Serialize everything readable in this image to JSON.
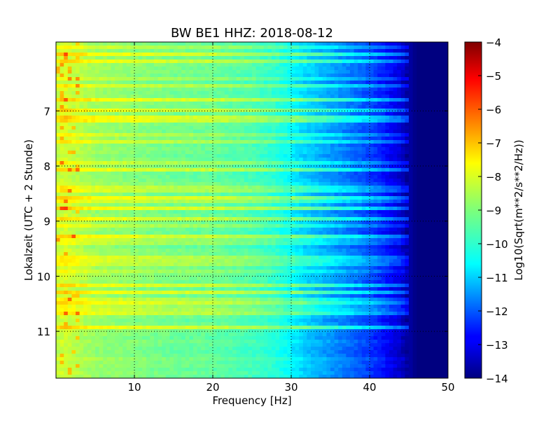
{
  "chart_data": {
    "type": "heatmap",
    "title": "BW BE1 HHZ: 2018-08-12",
    "xlabel": "Frequency [Hz]",
    "ylabel": "Lokalzeit (UTC + 2 Stunde)",
    "xlim": [
      0,
      50
    ],
    "ylim": [
      5.75,
      11.85
    ],
    "y_inverted": true,
    "x_ticks": [
      10,
      20,
      30,
      40,
      50
    ],
    "x_tick_labels": [
      "10",
      "20",
      "30",
      "40",
      "50"
    ],
    "y_ticks": [
      7,
      8,
      9,
      10,
      11
    ],
    "y_tick_labels": [
      "7",
      "8",
      "9",
      "10",
      "11"
    ],
    "grid": true,
    "colormap": "jet",
    "colorbar": {
      "label": "Log10(Sqrt(m**2/s**2/Hz))",
      "vmin": -14,
      "vmax": -4,
      "ticks": [
        -4,
        -5,
        -6,
        -7,
        -8,
        -9,
        -10,
        -11,
        -12,
        -13,
        -14
      ],
      "tick_labels": [
        "−4",
        "−5",
        "−6",
        "−7",
        "−8",
        "−9",
        "−10",
        "−11",
        "−12",
        "−13",
        "−14"
      ]
    },
    "spectral_profile": {
      "frequency_hz": [
        0,
        1,
        2,
        5,
        10,
        15,
        20,
        25,
        28,
        30,
        32,
        35,
        38,
        40,
        42,
        44,
        45,
        46,
        50
      ],
      "level": [
        -8.3,
        -8.0,
        -8.2,
        -8.6,
        -8.8,
        -9.0,
        -9.1,
        -9.4,
        -9.7,
        -10.1,
        -10.5,
        -11.0,
        -11.5,
        -11.9,
        -12.4,
        -13.0,
        -13.6,
        -14.0,
        -14.0
      ]
    }
  }
}
